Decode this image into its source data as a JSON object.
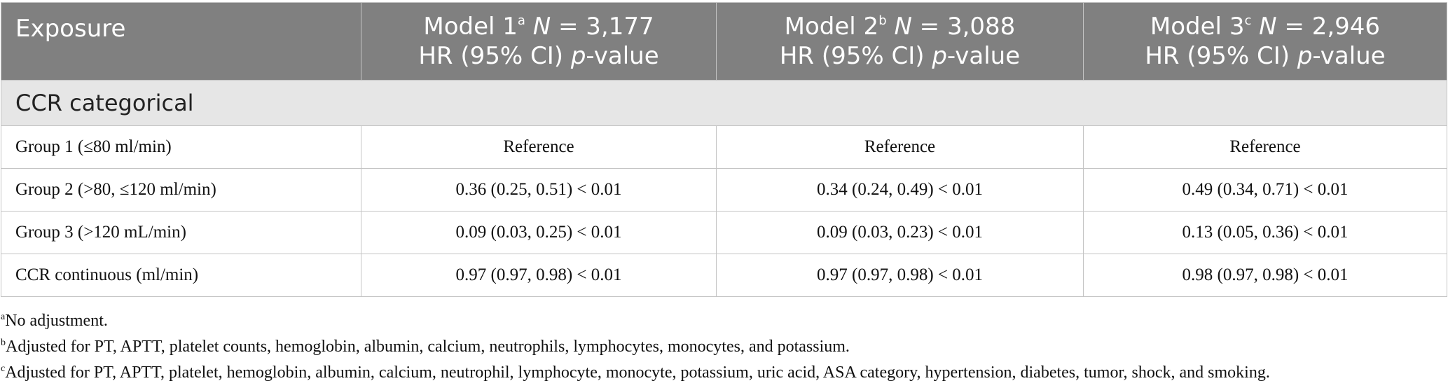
{
  "table": {
    "header": {
      "exposure": "Exposure",
      "models": [
        {
          "name": "Model 1",
          "sup": "a",
          "n_label": "N",
          "n_value": " = 3,177",
          "stat": "HR (95% CI) ",
          "p": "p",
          "pv": "-value"
        },
        {
          "name": "Model 2",
          "sup": "b",
          "n_label": "N",
          "n_value": " = 3,088",
          "stat": "HR (95% CI) ",
          "p": "p",
          "pv": "-value"
        },
        {
          "name": "Model 3",
          "sup": "c",
          "n_label": "N",
          "n_value": " = 2,946",
          "stat": "HR (95% CI) ",
          "p": "p",
          "pv": "-value"
        }
      ]
    },
    "section_title": "CCR categorical",
    "rows": [
      {
        "label": "Group 1 (≤80 ml/min)",
        "values": [
          "Reference",
          "Reference",
          "Reference"
        ]
      },
      {
        "label": "Group 2 (>80, ≤120 ml/min)",
        "values": [
          "0.36 (0.25, 0.51) < 0.01",
          "0.34 (0.24, 0.49) < 0.01",
          "0.49 (0.34, 0.71) < 0.01"
        ]
      },
      {
        "label": "Group 3 (>120 mL/min)",
        "values": [
          "0.09 (0.03, 0.25) < 0.01",
          "0.09 (0.03, 0.23) < 0.01",
          "0.13 (0.05, 0.36) < 0.01"
        ]
      },
      {
        "label": "CCR continuous (ml/min)",
        "values": [
          "0.97 (0.97, 0.98) < 0.01",
          "0.97 (0.97, 0.98) < 0.01",
          "0.98 (0.97, 0.98) < 0.01"
        ]
      }
    ]
  },
  "footnotes": [
    {
      "mark": "a",
      "text": "No adjustment."
    },
    {
      "mark": "b",
      "text": "Adjusted for PT, APTT, platelet counts, hemoglobin, albumin, calcium, neutrophils, lymphocytes, monocytes, and potassium."
    },
    {
      "mark": "c",
      "text": "Adjusted for PT, APTT, platelet, hemoglobin, albumin, calcium, neutrophil, lymphocyte, monocyte, potassium, uric acid, ASA category, hypertension, diabetes, tumor, shock, and smoking."
    }
  ],
  "colors": {
    "header_bg": "#808080",
    "section_bg": "#e6e6e6",
    "border": "#c4c4c4"
  }
}
